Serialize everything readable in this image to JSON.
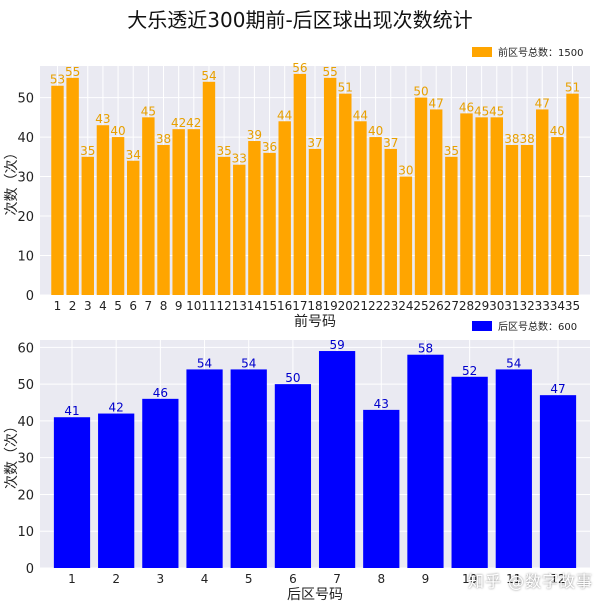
{
  "title": "大乐透近300期前-后区球出现次数统计",
  "watermark": "知乎 @数字故事",
  "chart_data": [
    {
      "type": "bar",
      "xlabel": "前号码",
      "ylabel": "次数（次）",
      "ylim": [
        0,
        58
      ],
      "yticks": [
        0,
        10,
        20,
        30,
        40,
        50
      ],
      "grid": true,
      "legend": "top-right",
      "color": "#FFA500",
      "series": [
        {
          "name": "前区号总数：1500",
          "categories": [
            "1",
            "2",
            "3",
            "4",
            "5",
            "6",
            "7",
            "8",
            "9",
            "10",
            "11",
            "12",
            "13",
            "14",
            "15",
            "16",
            "17",
            "18",
            "19",
            "20",
            "21",
            "22",
            "23",
            "24",
            "25",
            "26",
            "27",
            "28",
            "29",
            "30",
            "31",
            "32",
            "33",
            "34",
            "35"
          ],
          "values": [
            53,
            55,
            35,
            43,
            40,
            34,
            45,
            38,
            42,
            42,
            54,
            35,
            33,
            39,
            36,
            44,
            56,
            37,
            55,
            51,
            44,
            40,
            37,
            30,
            50,
            47,
            35,
            46,
            45,
            45,
            38,
            38,
            47,
            40,
            51
          ]
        }
      ]
    },
    {
      "type": "bar",
      "xlabel": "后区号码",
      "ylabel": "次数（次）",
      "ylim": [
        0,
        62
      ],
      "yticks": [
        0,
        10,
        20,
        30,
        40,
        50,
        60
      ],
      "grid": true,
      "legend": "top-right",
      "color": "#0000FF",
      "series": [
        {
          "name": "后区号总数：600",
          "categories": [
            "1",
            "2",
            "3",
            "4",
            "5",
            "6",
            "7",
            "8",
            "9",
            "10",
            "11",
            "12"
          ],
          "values": [
            41,
            42,
            46,
            54,
            54,
            50,
            59,
            43,
            58,
            52,
            54,
            47
          ]
        }
      ]
    }
  ]
}
